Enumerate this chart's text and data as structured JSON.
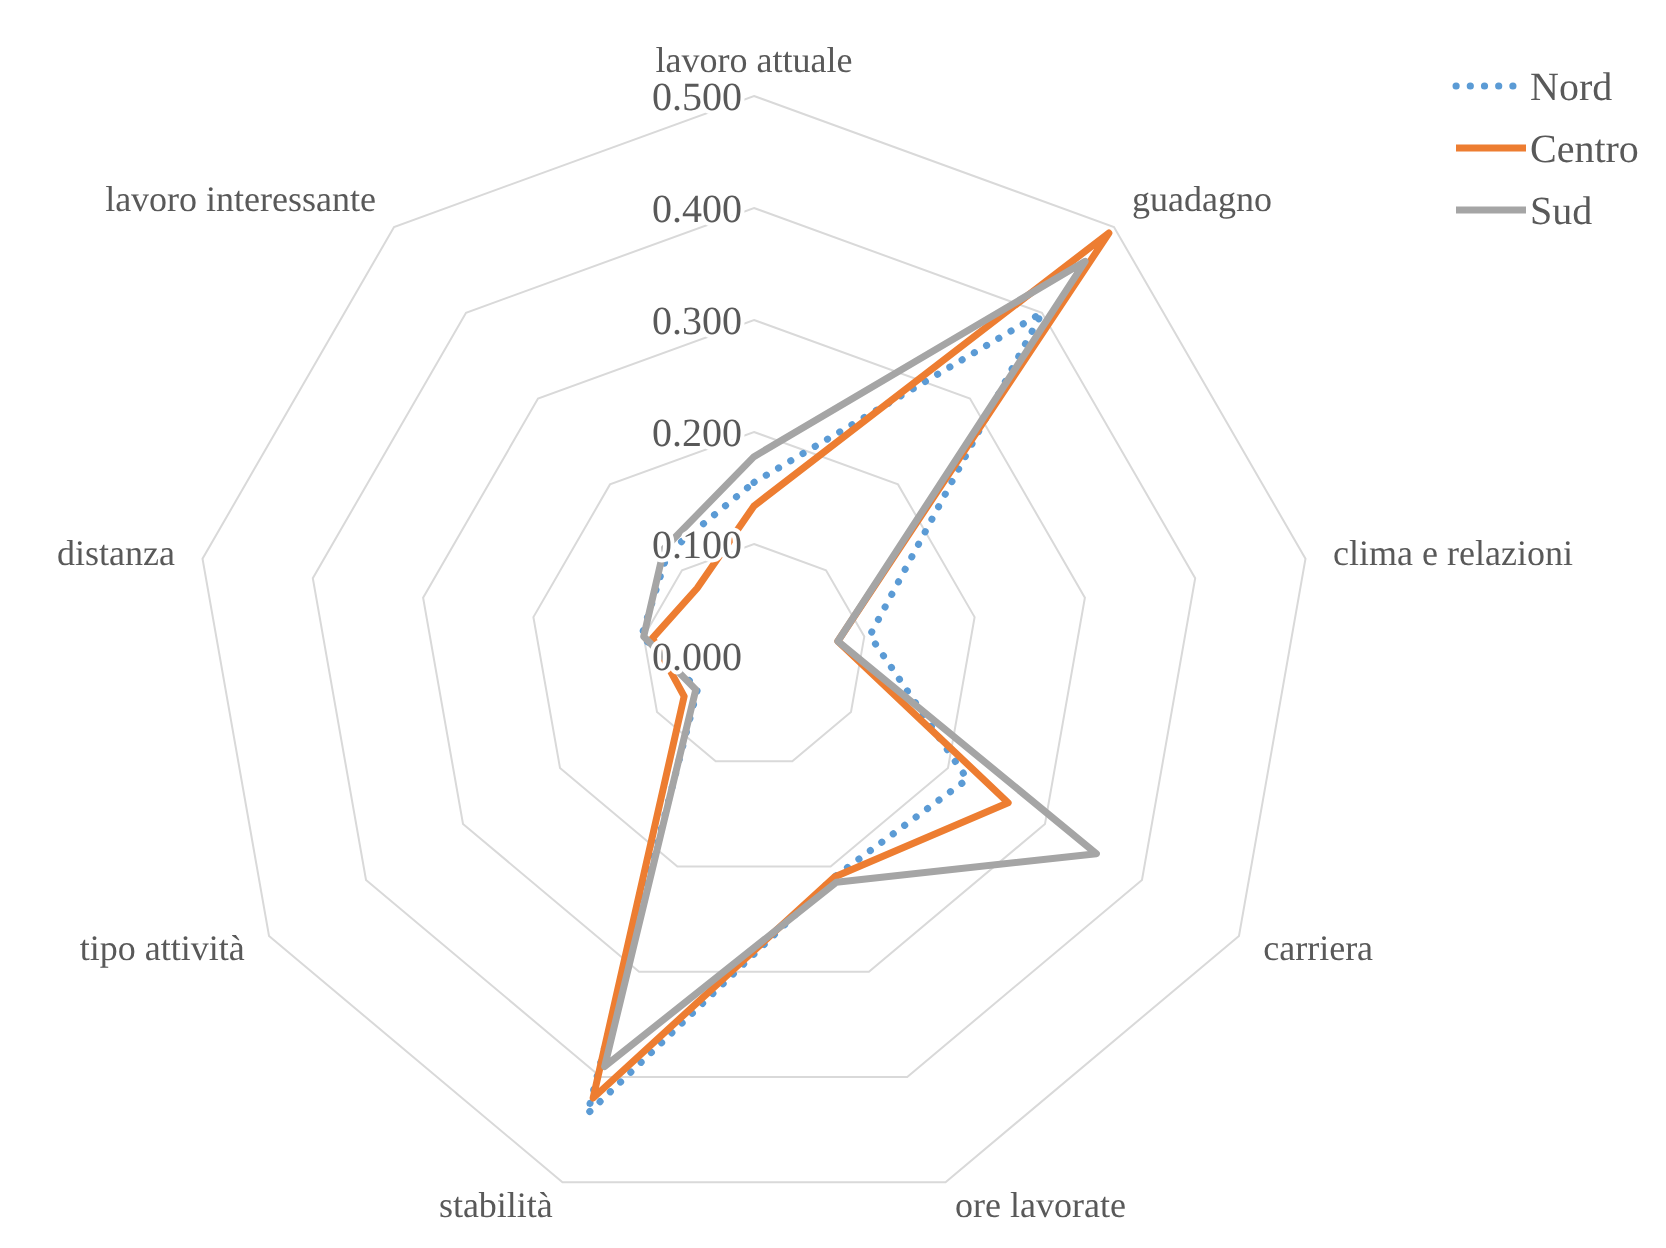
{
  "chart_data": {
    "type": "radar",
    "categories": [
      "lavoro attuale",
      "guadagno",
      "clima e relazioni",
      "carriera",
      "ore lavorate",
      "stabilità",
      "tipo attività",
      "distanza",
      "lavoro interessante"
    ],
    "series": [
      {
        "name": "Nord",
        "color": "#5b9bd5",
        "line_style": "dotted",
        "values": [
          0.155,
          0.4,
          0.105,
          0.22,
          0.21,
          0.435,
          0.058,
          0.102,
          0.12
        ]
      },
      {
        "name": "Centro",
        "color": "#ed7d31",
        "line_style": "solid",
        "values": [
          0.134,
          0.493,
          0.076,
          0.262,
          0.21,
          0.42,
          0.072,
          0.092,
          0.079
        ]
      },
      {
        "name": "Sud",
        "color": "#a5a5a5",
        "line_style": "solid",
        "values": [
          0.178,
          0.46,
          0.076,
          0.353,
          0.215,
          0.39,
          0.06,
          0.1,
          0.125
        ]
      }
    ],
    "ylim": [
      0,
      0.5
    ],
    "yticks": [
      {
        "value": 0,
        "label": "0.000"
      },
      {
        "value": 0.1,
        "label": "0.100"
      },
      {
        "value": 0.2,
        "label": "0.200"
      },
      {
        "value": 0.3,
        "label": "0.300"
      },
      {
        "value": 0.4,
        "label": "0.400"
      },
      {
        "value": 0.5,
        "label": "0.500"
      }
    ],
    "grid": true,
    "legend": "top right",
    "marker": "none"
  }
}
